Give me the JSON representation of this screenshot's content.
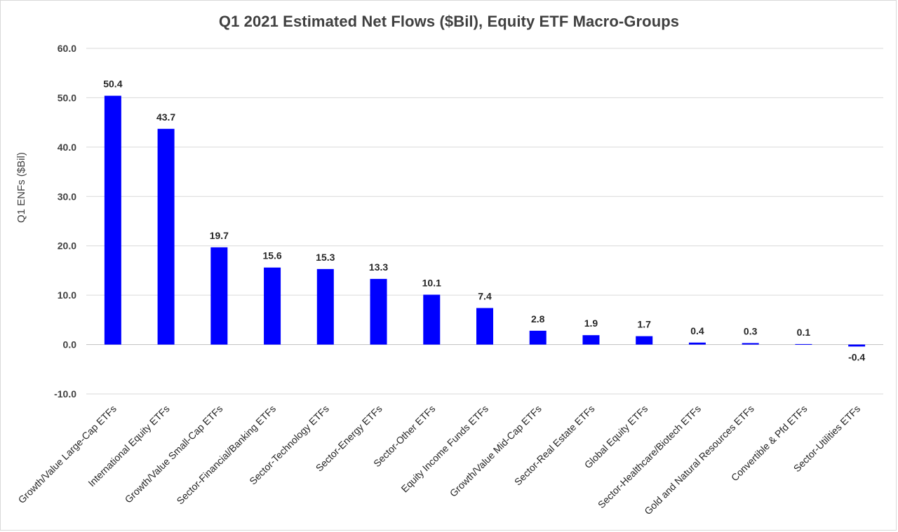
{
  "chart_data": {
    "type": "bar",
    "title": "Q1 2021 Estimated Net Flows ($Bil), Equity ETF Macro-Groups",
    "xlabel": "",
    "ylabel": "Q1 ENFs ($Bil)",
    "ylim": [
      -10,
      60
    ],
    "yticks": [
      "-10.0",
      "0.0",
      "10.0",
      "20.0",
      "30.0",
      "40.0",
      "50.0",
      "60.0"
    ],
    "grid": true,
    "bar_color": "#0000FF",
    "categories": [
      "Growth/Value Large-Cap ETFs",
      "International Equity ETFs",
      "Growth/Value Small-Cap ETFs",
      "Sector-Financial/Banking ETFs",
      "Sector-Technology ETFs",
      "Sector-Energy ETFs",
      "Sector-Other ETFs",
      "Equity Income Funds ETFs",
      "Growth/Value Mid-Cap ETFs",
      "Sector-Real Estate ETFs",
      "Global Equity ETFs",
      "Sector-Healthcare/Biotech ETFs",
      "Gold and Natural Resources ETFs",
      "Convertible & Pfd ETFs",
      "Sector-Utilities ETFs"
    ],
    "values": [
      50.4,
      43.7,
      19.7,
      15.6,
      15.3,
      13.3,
      10.1,
      7.4,
      2.8,
      1.9,
      1.7,
      0.4,
      0.3,
      0.1,
      -0.4
    ],
    "data_labels": [
      "50.4",
      "43.7",
      "19.7",
      "15.6",
      "15.3",
      "13.3",
      "10.1",
      "7.4",
      "2.8",
      "1.9",
      "1.7",
      "0.4",
      "0.3",
      "0.1",
      "-0.4"
    ]
  }
}
